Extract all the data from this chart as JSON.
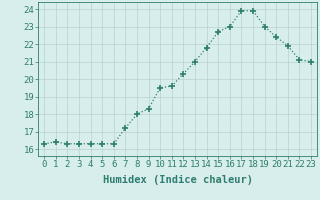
{
  "x": [
    0,
    1,
    2,
    3,
    4,
    5,
    6,
    7,
    8,
    9,
    10,
    11,
    12,
    13,
    14,
    15,
    16,
    17,
    18,
    19,
    20,
    21,
    22,
    23
  ],
  "y": [
    16.3,
    16.4,
    16.3,
    16.3,
    16.3,
    16.3,
    16.3,
    17.2,
    18.0,
    18.3,
    19.5,
    19.6,
    20.3,
    21.0,
    21.8,
    22.7,
    23.0,
    23.9,
    23.9,
    23.0,
    22.4,
    21.9,
    21.1,
    21.0
  ],
  "line_color": "#2e7d6e",
  "marker": "+",
  "marker_size": 4,
  "marker_linewidth": 1.2,
  "bg_color": "#d8eeec",
  "grid_color": "#b8d0ce",
  "tick_color": "#2e7d6e",
  "xlabel": "Humidex (Indice chaleur)",
  "ylabel_ticks": [
    16,
    17,
    18,
    19,
    20,
    21,
    22,
    23,
    24
  ],
  "xlim": [
    -0.5,
    23.5
  ],
  "ylim": [
    15.6,
    24.4
  ],
  "xlabel_fontsize": 7.5,
  "tick_fontsize": 6.5,
  "line_width": 0.9
}
